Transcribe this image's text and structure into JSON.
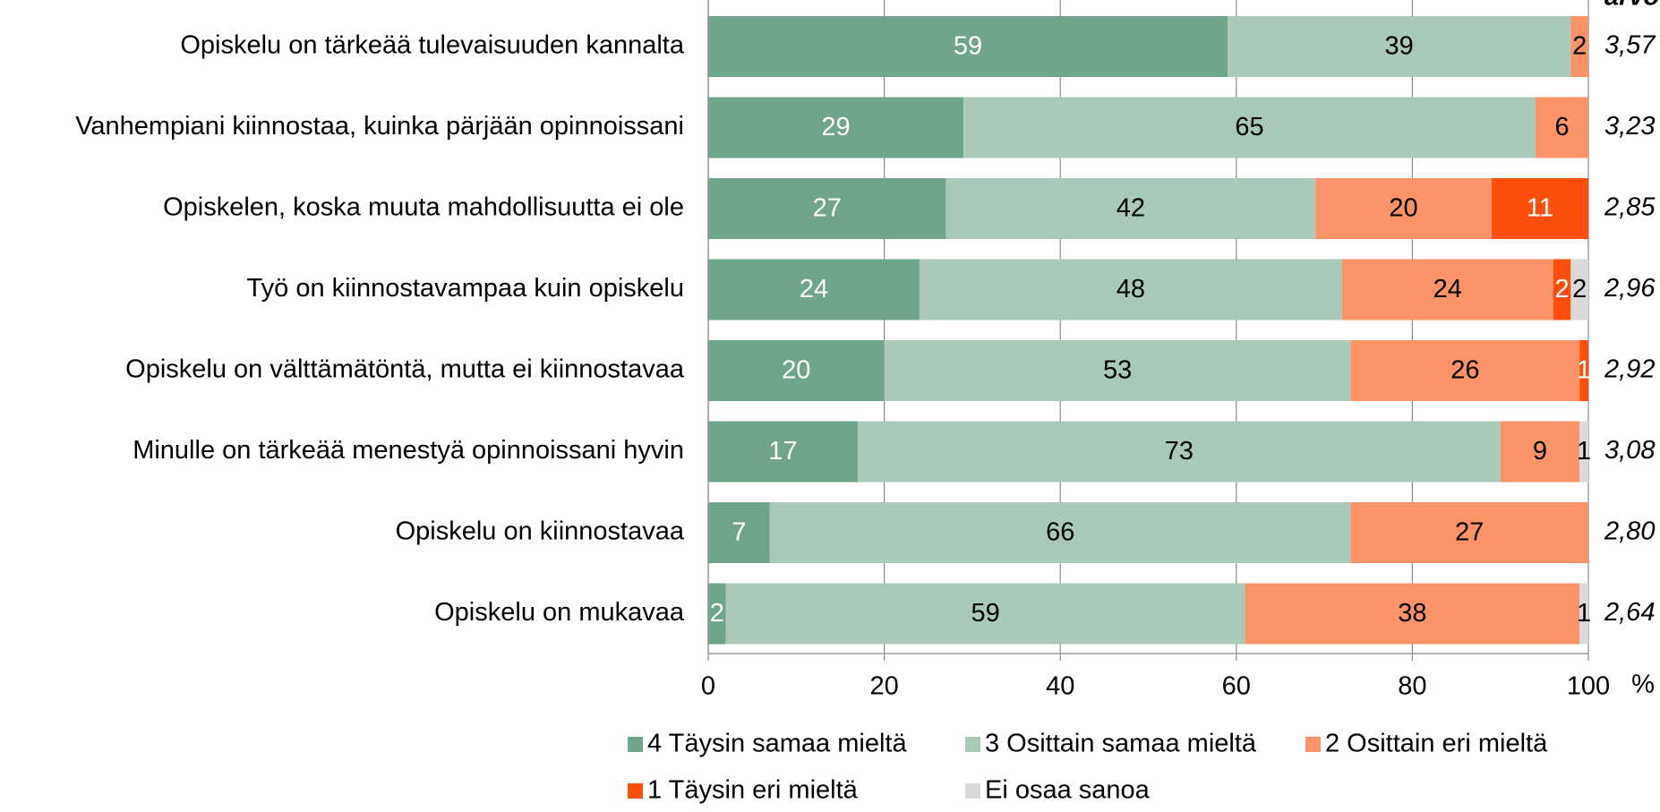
{
  "chart_data": {
    "type": "stacked_bar_horizontal",
    "mean_header": "arvo",
    "categories": [
      "Opiskelu on tärkeää tulevaisuuden kannalta",
      "Vanhempiani kiinnostaa, kuinka pärjään opinnoissani",
      "Opiskelen, koska muuta mahdollisuutta ei ole",
      "Työ on kiinnostavampaa kuin opiskelu",
      "Opiskelu on välttämätöntä, mutta ei kiinnostavaa",
      "Minulle on tärkeää menestyä opinnoissani hyvin",
      "Opiskelu on kiinnostavaa",
      "Opiskelu on mukavaa"
    ],
    "series": [
      {
        "name": "4 Täysin samaa mieltä",
        "color": "#6fa58a",
        "label_color": "#ffffff",
        "values": [
          59,
          29,
          27,
          24,
          20,
          17,
          7,
          2
        ]
      },
      {
        "name": "3 Osittain samaa mieltä",
        "color": "#abc9b8",
        "label_color": "#000000",
        "values": [
          39,
          65,
          42,
          48,
          53,
          73,
          66,
          59
        ]
      },
      {
        "name": "2 Osittain eri mieltä",
        "color": "#fa9367",
        "label_color": "#000000",
        "values": [
          2,
          6,
          20,
          24,
          26,
          9,
          27,
          38
        ]
      },
      {
        "name": "1 Täysin eri mieltä",
        "color": "#fc4f0e",
        "label_color": "#ffffff",
        "values": [
          null,
          null,
          11,
          2,
          1,
          null,
          null,
          null
        ]
      },
      {
        "name": "Ei osaa sanoa",
        "color": "#d9d9d9",
        "label_color": "#000000",
        "values": [
          null,
          null,
          null,
          2,
          null,
          1,
          null,
          1
        ]
      }
    ],
    "means": [
      "3,57",
      "3,23",
      "2,85",
      "2,96",
      "2,92",
      "3,08",
      "2,80",
      "2,64"
    ],
    "xlim": [
      0,
      100
    ],
    "xticks": [
      0,
      20,
      40,
      60,
      80,
      100
    ],
    "x_unit": "%",
    "grid": true
  }
}
